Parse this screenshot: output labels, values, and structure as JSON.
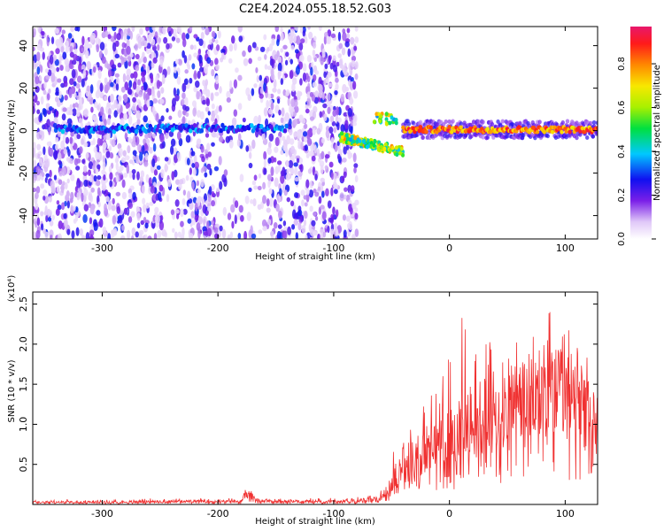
{
  "title": "C2E4.2024.055.18.52.G03",
  "chart_data": [
    {
      "type": "heatmap",
      "xlabel": "Height of straight line (km)",
      "ylabel": "Frequency (Hz)",
      "xlim": [
        -360,
        128
      ],
      "ylim": [
        -51,
        49
      ],
      "xticks": [
        -300,
        -200,
        -100,
        0,
        100
      ],
      "yticks": [
        -40,
        -20,
        0,
        20,
        40
      ],
      "colorbar": {
        "label": "Normalized spectral amplitude",
        "range": [
          0,
          0.97
        ],
        "ticks": [
          0.0,
          0.2,
          0.4,
          0.6,
          0.8
        ],
        "colormap": "rainbow (white, violet, blue, cyan, green, yellow, orange, red, magenta)"
      },
      "features": {
        "noise_region_x": [
          -360,
          -80
        ],
        "ridge_left": {
          "x": [
            -340,
            -140
          ],
          "frequency": 1,
          "amplitude": 0.35
        },
        "ridge_jump": {
          "x": [
            -95,
            -40
          ],
          "frequency": [
            -3,
            -10
          ]
        },
        "ridge_right": {
          "x": [
            -40,
            128
          ],
          "frequency": 0.5,
          "amplitude": 0.9
        }
      }
    },
    {
      "type": "line",
      "xlabel": "Height of straight line (km)",
      "ylabel": "SNR (10 * v/v)",
      "y_multiplier": "(x10⁴)",
      "xlim": [
        -360,
        128
      ],
      "ylim": [
        0,
        2.65
      ],
      "xticks": [
        -300,
        -200,
        -100,
        0,
        100
      ],
      "yticks": [
        0.5,
        1.0,
        1.5,
        2.0,
        2.5
      ],
      "series": [
        {
          "color": "#f03030",
          "x": [
            -360,
            -300,
            -250,
            -200,
            -180,
            -175,
            -165,
            -150,
            -100,
            -80,
            -60,
            -50,
            -45,
            -40,
            -30,
            -20,
            -10,
            0,
            10,
            20,
            30,
            40,
            50,
            60,
            70,
            80,
            90,
            100,
            110,
            120,
            128
          ],
          "mean": [
            0.03,
            0.03,
            0.04,
            0.04,
            0.04,
            0.14,
            0.05,
            0.04,
            0.04,
            0.05,
            0.07,
            0.25,
            0.45,
            0.55,
            0.6,
            0.7,
            0.75,
            0.9,
            1.0,
            1.1,
            1.15,
            1.25,
            1.3,
            1.3,
            1.35,
            1.4,
            1.4,
            1.38,
            1.35,
            1.1,
            1.0
          ],
          "peak": [
            0.06,
            0.06,
            0.08,
            0.08,
            0.08,
            0.22,
            0.1,
            0.08,
            0.08,
            0.1,
            0.15,
            0.8,
            0.9,
            1.0,
            1.2,
            1.3,
            1.5,
            1.9,
            2.6,
            2.2,
            2.0,
            2.1,
            2.0,
            2.2,
            2.15,
            2.1,
            2.65,
            2.2,
            2.2,
            2.1,
            1.6
          ]
        }
      ]
    }
  ]
}
